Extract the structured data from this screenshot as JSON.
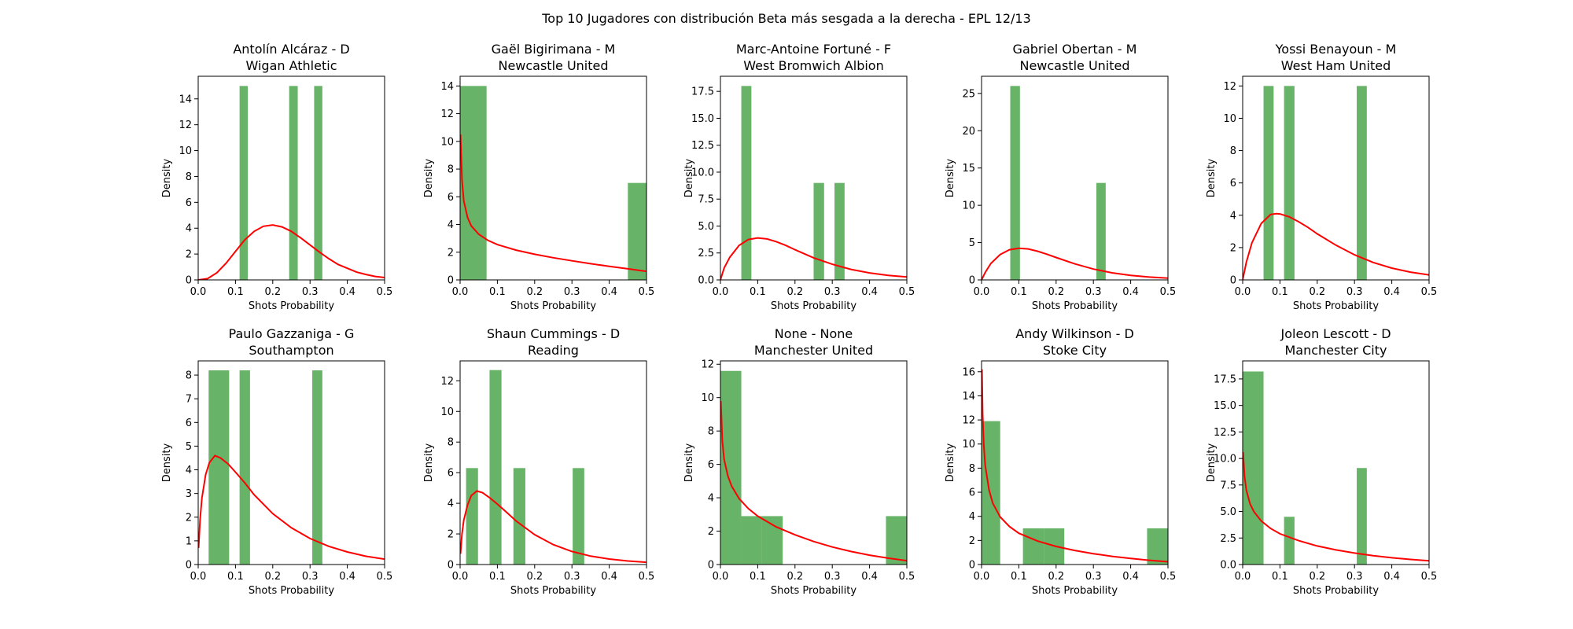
{
  "title": "Top 10 Jugadores con distribución Beta más sesgada a la derecha - EPL 12/13",
  "colors": {
    "bars": "#4ca64c",
    "curve": "#ff0000",
    "axes": "#000000"
  },
  "chart_data": [
    {
      "type": "bar",
      "title_line1": "Antolín Alcáraz - D",
      "title_line2": "Wigan Athletic",
      "xlabel": "Shots Probability",
      "ylabel": "Density",
      "xlim": [
        0,
        0.5
      ],
      "ylim": [
        0,
        15.75
      ],
      "xticks": [
        "0.0",
        "0.1",
        "0.2",
        "0.3",
        "0.4",
        "0.5"
      ],
      "yticks": [
        "0",
        "2",
        "4",
        "6",
        "8",
        "10",
        "12",
        "14"
      ],
      "bars": [
        [
          0.111,
          0.133,
          15
        ],
        [
          0.244,
          0.267,
          15
        ],
        [
          0.311,
          0.333,
          15
        ]
      ],
      "curve": [
        [
          0,
          0
        ],
        [
          0.025,
          0.1
        ],
        [
          0.05,
          0.55
        ],
        [
          0.075,
          1.3
        ],
        [
          0.1,
          2.2
        ],
        [
          0.125,
          3.1
        ],
        [
          0.15,
          3.75
        ],
        [
          0.175,
          4.15
        ],
        [
          0.2,
          4.25
        ],
        [
          0.225,
          4.1
        ],
        [
          0.25,
          3.75
        ],
        [
          0.275,
          3.25
        ],
        [
          0.3,
          2.7
        ],
        [
          0.325,
          2.15
        ],
        [
          0.35,
          1.65
        ],
        [
          0.375,
          1.2
        ],
        [
          0.4,
          0.9
        ],
        [
          0.425,
          0.6
        ],
        [
          0.45,
          0.42
        ],
        [
          0.475,
          0.27
        ],
        [
          0.5,
          0.18
        ]
      ]
    },
    {
      "type": "bar",
      "title_line1": "Gaël Bigirimana - M",
      "title_line2": "Newcastle United",
      "xlabel": "Shots Probability",
      "ylabel": "Density",
      "xlim": [
        0,
        0.5
      ],
      "ylim": [
        0,
        14.7
      ],
      "xticks": [
        "0.0",
        "0.1",
        "0.2",
        "0.3",
        "0.4",
        "0.5"
      ],
      "yticks": [
        "0",
        "2",
        "4",
        "6",
        "8",
        "10",
        "12",
        "14"
      ],
      "bars": [
        [
          0.0,
          0.071,
          14
        ],
        [
          0.45,
          0.5,
          7
        ]
      ],
      "curve": [
        [
          0.001,
          10.5
        ],
        [
          0.005,
          7.2
        ],
        [
          0.01,
          5.7
        ],
        [
          0.02,
          4.5
        ],
        [
          0.03,
          3.9
        ],
        [
          0.05,
          3.3
        ],
        [
          0.075,
          2.85
        ],
        [
          0.1,
          2.55
        ],
        [
          0.15,
          2.15
        ],
        [
          0.2,
          1.85
        ],
        [
          0.25,
          1.6
        ],
        [
          0.3,
          1.38
        ],
        [
          0.35,
          1.17
        ],
        [
          0.4,
          0.98
        ],
        [
          0.45,
          0.8
        ],
        [
          0.5,
          0.62
        ]
      ]
    },
    {
      "type": "bar",
      "title_line1": "Marc-Antoine Fortuné - F",
      "title_line2": "West Bromwich Albion",
      "xlabel": "Shots Probability",
      "ylabel": "Density",
      "xlim": [
        0,
        0.5
      ],
      "ylim": [
        0,
        18.9
      ],
      "xticks": [
        "0.0",
        "0.1",
        "0.2",
        "0.3",
        "0.4",
        "0.5"
      ],
      "yticks": [
        "0.0",
        "2.5",
        "5.0",
        "7.5",
        "10.0",
        "12.5",
        "15.0",
        "17.5"
      ],
      "bars": [
        [
          0.056,
          0.083,
          18
        ],
        [
          0.25,
          0.278,
          9
        ],
        [
          0.306,
          0.333,
          9
        ]
      ],
      "curve": [
        [
          0,
          0
        ],
        [
          0.01,
          1.1
        ],
        [
          0.025,
          2.1
        ],
        [
          0.05,
          3.2
        ],
        [
          0.075,
          3.75
        ],
        [
          0.1,
          3.9
        ],
        [
          0.125,
          3.8
        ],
        [
          0.15,
          3.55
        ],
        [
          0.175,
          3.2
        ],
        [
          0.2,
          2.8
        ],
        [
          0.25,
          2.05
        ],
        [
          0.3,
          1.45
        ],
        [
          0.35,
          0.98
        ],
        [
          0.4,
          0.65
        ],
        [
          0.45,
          0.42
        ],
        [
          0.5,
          0.27
        ]
      ]
    },
    {
      "type": "bar",
      "title_line1": "Gabriel Obertan - M",
      "title_line2": "Newcastle United",
      "xlabel": "Shots Probability",
      "ylabel": "Density",
      "xlim": [
        0,
        0.5
      ],
      "ylim": [
        0,
        27.3
      ],
      "xticks": [
        "0.0",
        "0.1",
        "0.2",
        "0.3",
        "0.4",
        "0.5"
      ],
      "yticks": [
        "0",
        "5",
        "10",
        "15",
        "20",
        "25"
      ],
      "bars": [
        [
          0.077,
          0.103,
          26
        ],
        [
          0.308,
          0.333,
          13
        ]
      ],
      "curve": [
        [
          0,
          0
        ],
        [
          0.01,
          1.0
        ],
        [
          0.025,
          2.2
        ],
        [
          0.05,
          3.4
        ],
        [
          0.075,
          4.05
        ],
        [
          0.1,
          4.25
        ],
        [
          0.125,
          4.15
        ],
        [
          0.15,
          3.85
        ],
        [
          0.175,
          3.45
        ],
        [
          0.2,
          3.0
        ],
        [
          0.25,
          2.15
        ],
        [
          0.3,
          1.45
        ],
        [
          0.35,
          0.95
        ],
        [
          0.4,
          0.6
        ],
        [
          0.45,
          0.38
        ],
        [
          0.5,
          0.23
        ]
      ]
    },
    {
      "type": "bar",
      "title_line1": "Yossi Benayoun - M",
      "title_line2": "West Ham United",
      "xlabel": "Shots Probability",
      "ylabel": "Density",
      "xlim": [
        0,
        0.5
      ],
      "ylim": [
        0,
        12.6
      ],
      "xticks": [
        "0.0",
        "0.1",
        "0.2",
        "0.3",
        "0.4",
        "0.5"
      ],
      "yticks": [
        "0",
        "2",
        "4",
        "6",
        "8",
        "10",
        "12"
      ],
      "bars": [
        [
          0.056,
          0.083,
          12
        ],
        [
          0.111,
          0.139,
          12
        ],
        [
          0.306,
          0.333,
          12
        ]
      ],
      "curve": [
        [
          0,
          0
        ],
        [
          0.01,
          1.1
        ],
        [
          0.025,
          2.3
        ],
        [
          0.05,
          3.5
        ],
        [
          0.075,
          4.05
        ],
        [
          0.09,
          4.1
        ],
        [
          0.1,
          4.08
        ],
        [
          0.125,
          3.9
        ],
        [
          0.15,
          3.6
        ],
        [
          0.175,
          3.25
        ],
        [
          0.2,
          2.85
        ],
        [
          0.25,
          2.15
        ],
        [
          0.3,
          1.55
        ],
        [
          0.35,
          1.08
        ],
        [
          0.4,
          0.73
        ],
        [
          0.45,
          0.48
        ],
        [
          0.5,
          0.31
        ]
      ]
    },
    {
      "type": "bar",
      "title_line1": "Paulo Gazzaniga - G",
      "title_line2": "Southampton",
      "xlabel": "Shots Probability",
      "ylabel": "Density",
      "xlim": [
        0,
        0.5
      ],
      "ylim": [
        0,
        8.6
      ],
      "xticks": [
        "0.0",
        "0.1",
        "0.2",
        "0.3",
        "0.4",
        "0.5"
      ],
      "yticks": [
        "0",
        "1",
        "2",
        "3",
        "4",
        "5",
        "6",
        "7",
        "8"
      ],
      "bars": [
        [
          0.028,
          0.083,
          8.2
        ],
        [
          0.111,
          0.139,
          8.2
        ],
        [
          0.306,
          0.333,
          8.2
        ]
      ],
      "curve": [
        [
          0.001,
          0.7
        ],
        [
          0.005,
          1.9
        ],
        [
          0.01,
          2.8
        ],
        [
          0.02,
          3.8
        ],
        [
          0.03,
          4.3
        ],
        [
          0.045,
          4.6
        ],
        [
          0.06,
          4.5
        ],
        [
          0.08,
          4.25
        ],
        [
          0.1,
          3.9
        ],
        [
          0.125,
          3.45
        ],
        [
          0.15,
          2.95
        ],
        [
          0.2,
          2.15
        ],
        [
          0.25,
          1.55
        ],
        [
          0.3,
          1.1
        ],
        [
          0.35,
          0.77
        ],
        [
          0.4,
          0.53
        ],
        [
          0.45,
          0.35
        ],
        [
          0.5,
          0.23
        ]
      ]
    },
    {
      "type": "bar",
      "title_line1": "Shaun Cummings - D",
      "title_line2": "Reading",
      "xlabel": "Shots Probability",
      "ylabel": "Density",
      "xlim": [
        0,
        0.5
      ],
      "ylim": [
        0,
        13.3
      ],
      "xticks": [
        "0.0",
        "0.1",
        "0.2",
        "0.3",
        "0.4",
        "0.5"
      ],
      "yticks": [
        "0",
        "2",
        "4",
        "6",
        "8",
        "10",
        "12"
      ],
      "bars": [
        [
          0.016,
          0.048,
          6.3
        ],
        [
          0.079,
          0.111,
          12.7
        ],
        [
          0.143,
          0.175,
          6.3
        ],
        [
          0.302,
          0.333,
          6.3
        ]
      ],
      "curve": [
        [
          0.001,
          0.7
        ],
        [
          0.005,
          2.0
        ],
        [
          0.01,
          2.9
        ],
        [
          0.02,
          3.9
        ],
        [
          0.03,
          4.5
        ],
        [
          0.045,
          4.8
        ],
        [
          0.06,
          4.7
        ],
        [
          0.08,
          4.35
        ],
        [
          0.1,
          3.95
        ],
        [
          0.125,
          3.4
        ],
        [
          0.15,
          2.85
        ],
        [
          0.2,
          1.95
        ],
        [
          0.25,
          1.3
        ],
        [
          0.3,
          0.85
        ],
        [
          0.35,
          0.55
        ],
        [
          0.4,
          0.36
        ],
        [
          0.45,
          0.23
        ],
        [
          0.5,
          0.15
        ]
      ]
    },
    {
      "type": "bar",
      "title_line1": "None - None",
      "title_line2": "Manchester United",
      "xlabel": "Shots Probability",
      "ylabel": "Density",
      "xlim": [
        0,
        0.5
      ],
      "ylim": [
        0,
        12.2
      ],
      "xticks": [
        "0.0",
        "0.1",
        "0.2",
        "0.3",
        "0.4",
        "0.5"
      ],
      "yticks": [
        "0",
        "2",
        "4",
        "6",
        "8",
        "10",
        "12"
      ],
      "bars": [
        [
          0.0,
          0.056,
          11.6
        ],
        [
          0.056,
          0.111,
          2.9
        ],
        [
          0.111,
          0.167,
          2.9
        ],
        [
          0.444,
          0.5,
          2.9
        ]
      ],
      "curve": [
        [
          0.001,
          9.8
        ],
        [
          0.005,
          7.4
        ],
        [
          0.01,
          6.3
        ],
        [
          0.02,
          5.3
        ],
        [
          0.03,
          4.7
        ],
        [
          0.05,
          3.95
        ],
        [
          0.075,
          3.35
        ],
        [
          0.1,
          2.9
        ],
        [
          0.15,
          2.25
        ],
        [
          0.2,
          1.78
        ],
        [
          0.25,
          1.38
        ],
        [
          0.3,
          1.05
        ],
        [
          0.35,
          0.78
        ],
        [
          0.4,
          0.56
        ],
        [
          0.45,
          0.38
        ],
        [
          0.5,
          0.23
        ]
      ]
    },
    {
      "type": "bar",
      "title_line1": "Andy Wilkinson - D",
      "title_line2": "Stoke City",
      "xlabel": "Shots Probability",
      "ylabel": "Density",
      "xlim": [
        0,
        0.5
      ],
      "ylim": [
        0,
        16.9
      ],
      "xticks": [
        "0.0",
        "0.1",
        "0.2",
        "0.3",
        "0.4",
        "0.5"
      ],
      "yticks": [
        "0",
        "2",
        "4",
        "6",
        "8",
        "10",
        "12",
        "14",
        "16"
      ],
      "bars": [
        [
          0.0,
          0.05,
          11.9
        ],
        [
          0.111,
          0.167,
          3.0
        ],
        [
          0.167,
          0.222,
          3.0
        ],
        [
          0.444,
          0.5,
          3.0
        ]
      ],
      "curve": [
        [
          0.001,
          16.2
        ],
        [
          0.003,
          12.5
        ],
        [
          0.006,
          10.0
        ],
        [
          0.01,
          8.2
        ],
        [
          0.02,
          6.2
        ],
        [
          0.03,
          5.1
        ],
        [
          0.05,
          3.95
        ],
        [
          0.075,
          3.15
        ],
        [
          0.1,
          2.6
        ],
        [
          0.15,
          1.95
        ],
        [
          0.2,
          1.5
        ],
        [
          0.25,
          1.17
        ],
        [
          0.3,
          0.9
        ],
        [
          0.35,
          0.68
        ],
        [
          0.4,
          0.5
        ],
        [
          0.45,
          0.35
        ],
        [
          0.5,
          0.23
        ]
      ]
    },
    {
      "type": "bar",
      "title_line1": "Joleon Lescott - D",
      "title_line2": "Manchester City",
      "xlabel": "Shots Probability",
      "ylabel": "Density",
      "xlim": [
        0,
        0.5
      ],
      "ylim": [
        0,
        19.2
      ],
      "xticks": [
        "0.0",
        "0.1",
        "0.2",
        "0.3",
        "0.4",
        "0.5"
      ],
      "yticks": [
        "0.0",
        "2.5",
        "5.0",
        "7.5",
        "10.0",
        "12.5",
        "15.0",
        "17.5"
      ],
      "bars": [
        [
          0.0,
          0.056,
          18.2
        ],
        [
          0.111,
          0.139,
          4.5
        ],
        [
          0.306,
          0.333,
          9.1
        ]
      ],
      "curve": [
        [
          0.001,
          10.6
        ],
        [
          0.005,
          8.3
        ],
        [
          0.01,
          7.0
        ],
        [
          0.02,
          5.7
        ],
        [
          0.03,
          5.0
        ],
        [
          0.05,
          4.1
        ],
        [
          0.075,
          3.4
        ],
        [
          0.1,
          2.9
        ],
        [
          0.15,
          2.25
        ],
        [
          0.2,
          1.75
        ],
        [
          0.25,
          1.38
        ],
        [
          0.3,
          1.08
        ],
        [
          0.35,
          0.84
        ],
        [
          0.4,
          0.64
        ],
        [
          0.45,
          0.48
        ],
        [
          0.5,
          0.35
        ]
      ]
    }
  ]
}
